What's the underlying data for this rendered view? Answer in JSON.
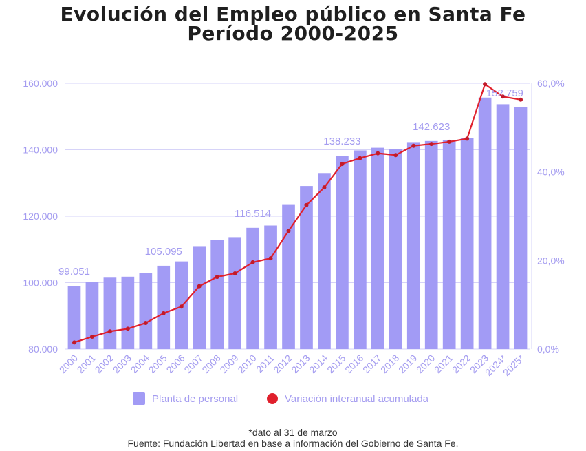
{
  "title": {
    "line1": "Evolución del Empleo público en Santa Fe",
    "line2": "Período 2000-2025"
  },
  "footnote": "*dato al 31 de marzo",
  "source": "Fuente: Fundación Libertad en base a información del Gobierno de Santa Fe.",
  "colors": {
    "bars": "#a29bf5",
    "line": "#e0202c",
    "marker": "#c21a2a",
    "axis_text": "#a49cf0",
    "grid": "#d6d3f8"
  },
  "chart_data": {
    "type": "bar",
    "categories": [
      "2000",
      "2001",
      "2002",
      "2003",
      "2004",
      "2005",
      "2006",
      "2007",
      "2008",
      "2009",
      "2010",
      "2011",
      "2012",
      "2013",
      "2014",
      "2015",
      "2016",
      "2017",
      "2018",
      "2019",
      "2020",
      "2021",
      "2022",
      "2023",
      "2024*",
      "2025*"
    ],
    "series": [
      {
        "name": "Planta de personal",
        "type": "bar",
        "axis": "left",
        "values": [
          99051,
          100100,
          101500,
          101800,
          103000,
          105095,
          106400,
          111000,
          112800,
          113700,
          116514,
          117200,
          123400,
          129100,
          133000,
          138233,
          139800,
          140600,
          140300,
          142300,
          142623,
          142800,
          143500,
          155700,
          153700,
          152759
        ]
      },
      {
        "name": "Variación interanual acumulada",
        "type": "line",
        "axis": "right",
        "values": [
          1.5,
          2.8,
          4.0,
          4.6,
          5.9,
          8.1,
          9.6,
          14.2,
          16.3,
          17.1,
          19.6,
          20.5,
          26.7,
          32.5,
          36.5,
          41.8,
          43.1,
          44.2,
          43.8,
          45.9,
          46.3,
          46.8,
          47.5,
          59.8,
          57.0,
          56.3
        ]
      }
    ],
    "data_labels": [
      {
        "index": 0,
        "text": "99.051"
      },
      {
        "index": 5,
        "text": "105.095"
      },
      {
        "index": 10,
        "text": "116.514"
      },
      {
        "index": 15,
        "text": "138.233"
      },
      {
        "index": 20,
        "text": "142.623"
      },
      {
        "index": 25,
        "text": "152.759"
      }
    ],
    "y_left": {
      "min": 80000,
      "max": 160000,
      "ticks": [
        80000,
        100000,
        120000,
        140000,
        160000
      ],
      "tick_labels": [
        "80.000",
        "100.000",
        "120.000",
        "140.000",
        "160.000"
      ]
    },
    "y_right": {
      "min": 0,
      "max": 60,
      "ticks": [
        0,
        20,
        40,
        60
      ],
      "tick_labels": [
        "0,0%",
        "20,0%",
        "40,0%",
        "60,0%"
      ]
    },
    "legend": {
      "position": "bottom",
      "items": [
        "Planta de personal",
        "Variación interanual acumulada"
      ]
    },
    "grid": true
  }
}
